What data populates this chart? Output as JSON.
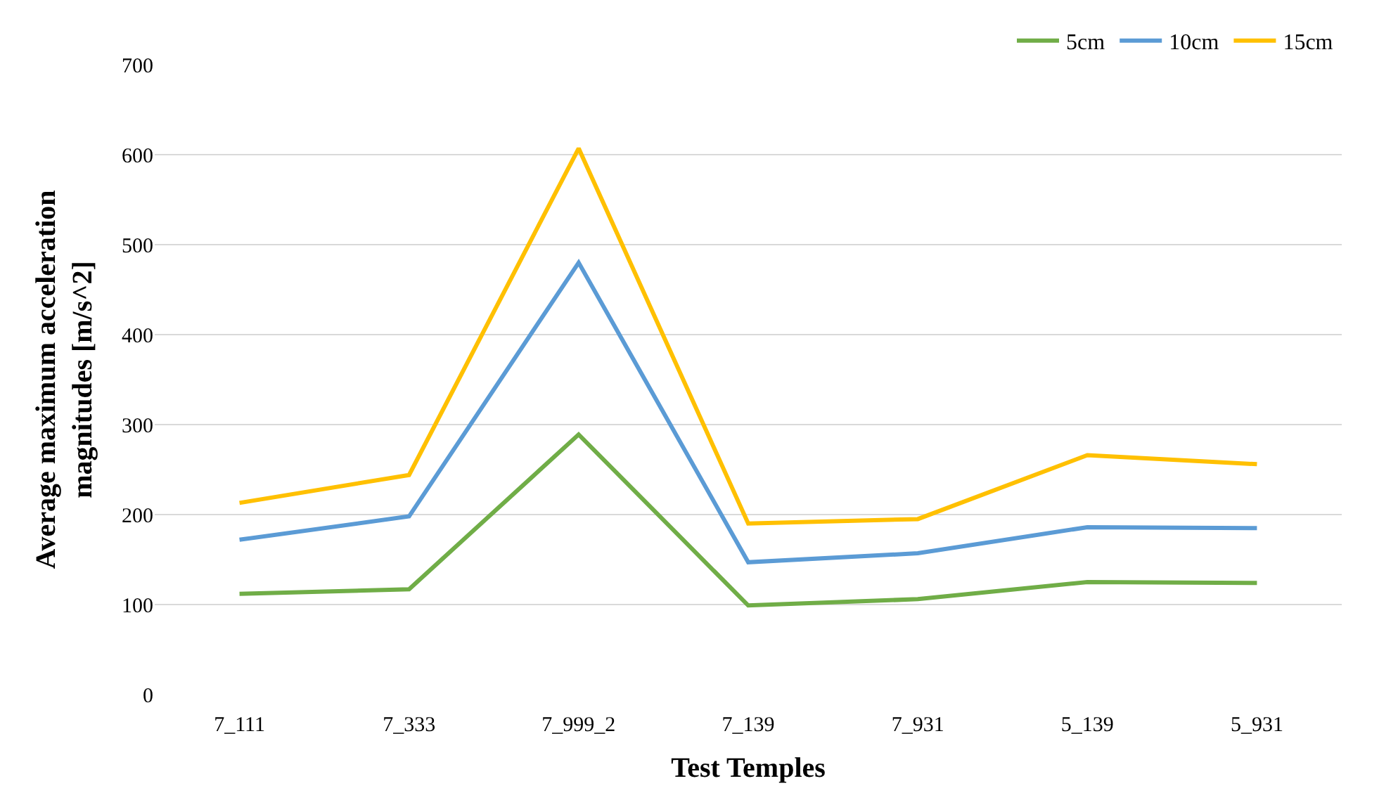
{
  "chart_data": {
    "type": "line",
    "xlabel": "Test Temples",
    "ylabel": "Average maximum acceleration magnitudes [m/s^2]",
    "categories": [
      "7_111",
      "7_333",
      "7_999_2",
      "7_139",
      "7_931",
      "5_139",
      "5_931"
    ],
    "series": [
      {
        "name": "5cm",
        "color": "#70ad47",
        "values": [
          112,
          117,
          289,
          99,
          106,
          125,
          124
        ]
      },
      {
        "name": "10cm",
        "color": "#5b9bd5",
        "values": [
          172,
          198,
          480,
          147,
          157,
          186,
          185
        ]
      },
      {
        "name": "15cm",
        "color": "#ffc000",
        "values": [
          213,
          244,
          607,
          190,
          195,
          266,
          256
        ]
      }
    ],
    "ylim": [
      0,
      700
    ],
    "yticks": [
      0,
      100,
      200,
      300,
      400,
      500,
      600,
      700
    ],
    "grid": "y",
    "legend": "top right",
    "marker": "none",
    "line_style": "solid"
  }
}
